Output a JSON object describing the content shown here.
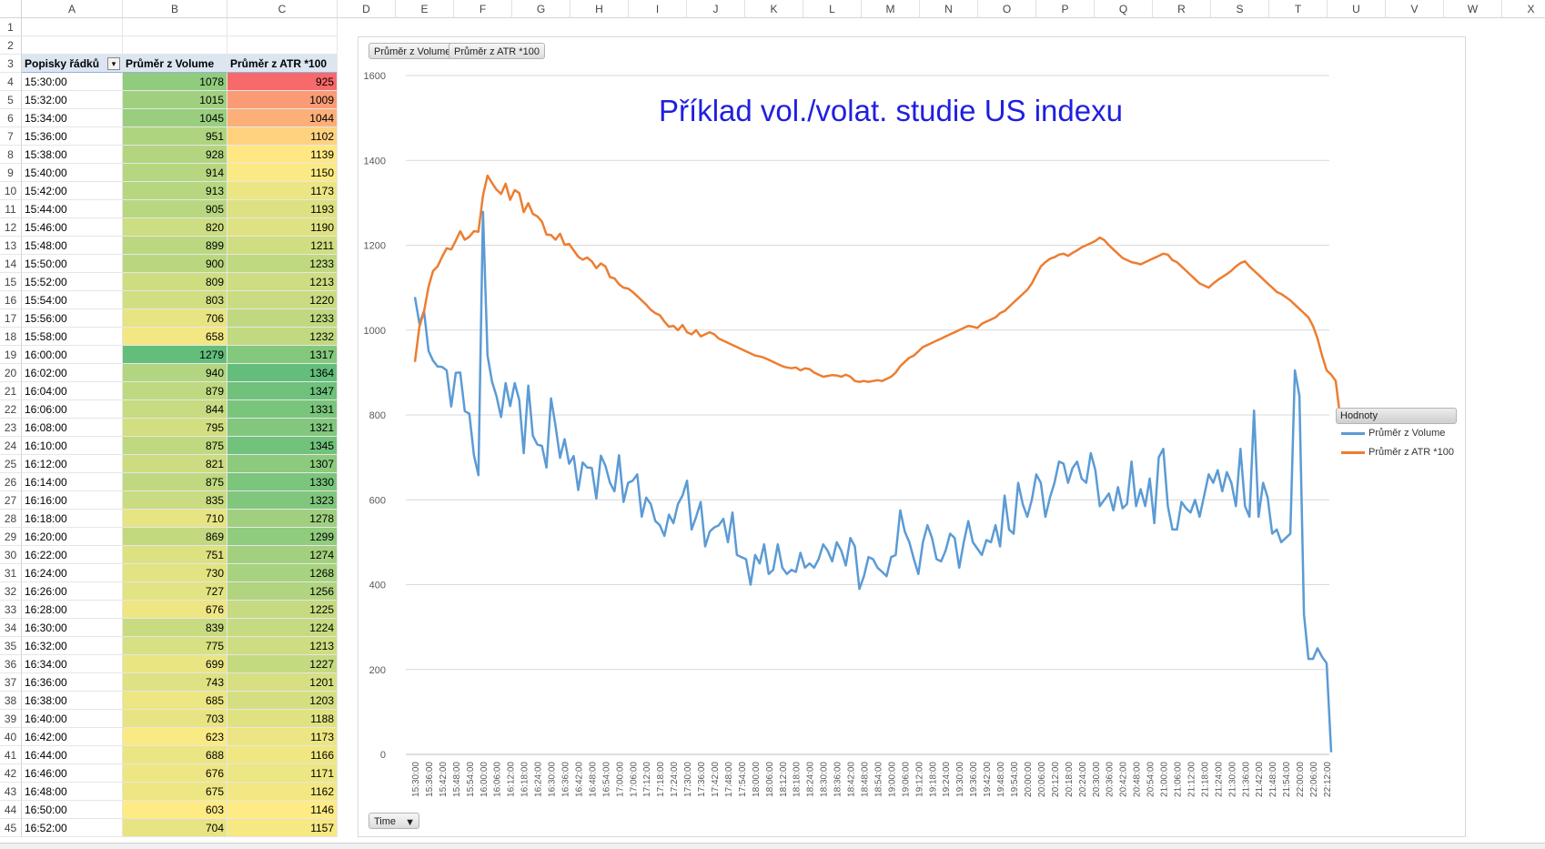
{
  "columns": [
    "A",
    "B",
    "C",
    "D",
    "E",
    "F",
    "G",
    "H",
    "I",
    "J",
    "K",
    "L",
    "M",
    "N",
    "O",
    "P",
    "Q",
    "R",
    "S",
    "T",
    "U",
    "V",
    "W",
    "X"
  ],
  "pivot": {
    "headers": [
      "Popisky řádků",
      "Průměr z Volume",
      "Průměr z ATR *100"
    ],
    "rows": [
      [
        "15:30:00",
        1078,
        925
      ],
      [
        "15:32:00",
        1015,
        1009
      ],
      [
        "15:34:00",
        1045,
        1044
      ],
      [
        "15:36:00",
        951,
        1102
      ],
      [
        "15:38:00",
        928,
        1139
      ],
      [
        "15:40:00",
        914,
        1150
      ],
      [
        "15:42:00",
        913,
        1173
      ],
      [
        "15:44:00",
        905,
        1193
      ],
      [
        "15:46:00",
        820,
        1190
      ],
      [
        "15:48:00",
        899,
        1211
      ],
      [
        "15:50:00",
        900,
        1233
      ],
      [
        "15:52:00",
        809,
        1213
      ],
      [
        "15:54:00",
        803,
        1220
      ],
      [
        "15:56:00",
        706,
        1233
      ],
      [
        "15:58:00",
        658,
        1232
      ],
      [
        "16:00:00",
        1279,
        1317
      ],
      [
        "16:02:00",
        940,
        1364
      ],
      [
        "16:04:00",
        879,
        1347
      ],
      [
        "16:06:00",
        844,
        1331
      ],
      [
        "16:08:00",
        795,
        1321
      ],
      [
        "16:10:00",
        875,
        1345
      ],
      [
        "16:12:00",
        821,
        1307
      ],
      [
        "16:14:00",
        875,
        1330
      ],
      [
        "16:16:00",
        835,
        1323
      ],
      [
        "16:18:00",
        710,
        1278
      ],
      [
        "16:20:00",
        869,
        1299
      ],
      [
        "16:22:00",
        751,
        1274
      ],
      [
        "16:24:00",
        730,
        1268
      ],
      [
        "16:26:00",
        727,
        1256
      ],
      [
        "16:28:00",
        676,
        1225
      ],
      [
        "16:30:00",
        839,
        1224
      ],
      [
        "16:32:00",
        775,
        1213
      ],
      [
        "16:34:00",
        699,
        1227
      ],
      [
        "16:36:00",
        743,
        1201
      ],
      [
        "16:38:00",
        685,
        1203
      ],
      [
        "16:40:00",
        703,
        1188
      ],
      [
        "16:42:00",
        623,
        1173
      ],
      [
        "16:44:00",
        688,
        1166
      ],
      [
        "16:46:00",
        676,
        1171
      ],
      [
        "16:48:00",
        675,
        1162
      ],
      [
        "16:50:00",
        603,
        1146
      ],
      [
        "16:52:00",
        704,
        1157
      ]
    ]
  },
  "chart_data": {
    "type": "line",
    "title": "Příklad vol./volat. studie US indexu",
    "field_buttons": [
      "Průměr z Volume",
      "Průměr z ATR *100"
    ],
    "axis_field_button": "Time",
    "legend_title": "Hodnoty",
    "ylim": [
      0,
      1600
    ],
    "yticks": [
      0,
      200,
      400,
      600,
      800,
      1000,
      1200,
      1400,
      1600
    ],
    "xtick_labels": [
      "15:30:00",
      "15:36:00",
      "15:42:00",
      "15:48:00",
      "15:54:00",
      "16:00:00",
      "16:06:00",
      "16:12:00",
      "16:18:00",
      "16:24:00",
      "16:30:00",
      "16:36:00",
      "16:42:00",
      "16:48:00",
      "16:54:00",
      "17:00:00",
      "17:06:00",
      "17:12:00",
      "17:18:00",
      "17:24:00",
      "17:30:00",
      "17:36:00",
      "17:42:00",
      "17:48:00",
      "17:54:00",
      "18:00:00",
      "18:06:00",
      "18:12:00",
      "18:18:00",
      "18:24:00",
      "18:30:00",
      "18:36:00",
      "18:42:00",
      "18:48:00",
      "18:54:00",
      "19:00:00",
      "19:06:00",
      "19:12:00",
      "19:18:00",
      "19:24:00",
      "19:30:00",
      "19:36:00",
      "19:42:00",
      "19:48:00",
      "19:54:00",
      "20:00:00",
      "20:06:00",
      "20:12:00",
      "20:18:00",
      "20:24:00",
      "20:30:00",
      "20:36:00",
      "20:42:00",
      "20:48:00",
      "20:54:00",
      "21:00:00",
      "21:06:00",
      "21:12:00",
      "21:18:00",
      "21:24:00",
      "21:30:00",
      "21:36:00",
      "21:42:00",
      "21:48:00",
      "21:54:00",
      "22:00:00",
      "22:06:00",
      "22:12:00"
    ],
    "n_points": 201,
    "series": [
      {
        "name": "Průměr z Volume",
        "color": "#5b9bd5",
        "values": [
          1078,
          1015,
          1045,
          951,
          928,
          914,
          913,
          905,
          820,
          899,
          900,
          809,
          803,
          706,
          658,
          1279,
          940,
          879,
          844,
          795,
          875,
          821,
          875,
          835,
          710,
          869,
          751,
          730,
          727,
          676,
          839,
          775,
          699,
          743,
          685,
          703,
          623,
          688,
          676,
          675,
          603,
          704,
          680,
          640,
          620,
          705,
          595,
          640,
          645,
          660,
          560,
          605,
          590,
          550,
          540,
          515,
          565,
          545,
          590,
          610,
          645,
          530,
          560,
          595,
          490,
          525,
          535,
          540,
          555,
          500,
          570,
          470,
          465,
          460,
          400,
          470,
          450,
          495,
          425,
          435,
          495,
          440,
          425,
          435,
          430,
          475,
          440,
          450,
          440,
          460,
          495,
          480,
          455,
          500,
          480,
          445,
          510,
          490,
          390,
          420,
          465,
          460,
          440,
          430,
          420,
          465,
          470,
          575,
          525,
          500,
          460,
          425,
          500,
          540,
          510,
          460,
          455,
          480,
          520,
          510,
          440,
          500,
          550,
          500,
          485,
          470,
          505,
          500,
          540,
          490,
          610,
          530,
          520,
          640,
          590,
          560,
          600,
          660,
          640,
          560,
          605,
          640,
          690,
          685,
          640,
          675,
          690,
          650,
          640,
          710,
          670,
          585,
          600,
          615,
          575,
          630,
          580,
          590,
          690,
          585,
          625,
          585,
          650,
          545,
          700,
          720,
          585,
          530,
          530,
          595,
          580,
          570,
          600,
          560,
          610,
          660,
          640,
          670,
          620,
          665,
          640,
          585,
          720,
          585,
          560,
          810,
          560,
          640,
          605,
          520,
          530,
          500,
          510,
          520,
          905,
          845,
          330,
          225,
          225,
          250,
          230,
          215,
          5
        ]
      },
      {
        "name": "Průměr z ATR *100",
        "color": "#ed7d31",
        "values": [
          925,
          1009,
          1044,
          1102,
          1139,
          1150,
          1173,
          1193,
          1190,
          1211,
          1233,
          1213,
          1220,
          1233,
          1232,
          1317,
          1364,
          1347,
          1331,
          1321,
          1345,
          1307,
          1330,
          1323,
          1278,
          1299,
          1274,
          1268,
          1256,
          1225,
          1224,
          1213,
          1227,
          1201,
          1203,
          1188,
          1173,
          1166,
          1171,
          1162,
          1146,
          1157,
          1150,
          1125,
          1122,
          1108,
          1100,
          1098,
          1090,
          1080,
          1070,
          1060,
          1048,
          1040,
          1035,
          1020,
          1008,
          1010,
          1000,
          1012,
          995,
          990,
          1000,
          985,
          990,
          995,
          990,
          980,
          975,
          970,
          965,
          960,
          955,
          950,
          945,
          940,
          938,
          935,
          930,
          925,
          920,
          915,
          912,
          910,
          912,
          905,
          910,
          908,
          900,
          895,
          890,
          892,
          894,
          893,
          890,
          895,
          890,
          880,
          878,
          880,
          878,
          880,
          882,
          880,
          885,
          890,
          900,
          915,
          925,
          935,
          940,
          950,
          960,
          965,
          970,
          975,
          980,
          985,
          990,
          995,
          1000,
          1005,
          1010,
          1008,
          1005,
          1015,
          1020,
          1025,
          1030,
          1040,
          1045,
          1055,
          1065,
          1075,
          1085,
          1095,
          1110,
          1130,
          1150,
          1160,
          1168,
          1172,
          1178,
          1180,
          1175,
          1182,
          1188,
          1195,
          1200,
          1205,
          1210,
          1218,
          1212,
          1200,
          1190,
          1180,
          1170,
          1165,
          1160,
          1158,
          1155,
          1160,
          1165,
          1170,
          1175,
          1180,
          1178,
          1165,
          1160,
          1150,
          1140,
          1130,
          1120,
          1110,
          1105,
          1100,
          1110,
          1118,
          1125,
          1132,
          1140,
          1150,
          1158,
          1162,
          1150,
          1140,
          1130,
          1120,
          1110,
          1100,
          1090,
          1085,
          1078,
          1070,
          1060,
          1050,
          1040,
          1030,
          1010,
          980,
          940,
          905,
          895,
          880,
          795
        ]
      }
    ]
  },
  "colors": {
    "volume_high": "#63be7b",
    "volume_low": "#ffeb84",
    "atr_high": "#63be7b",
    "atr_mid": "#ffeb84",
    "atr_low": "#f8696b",
    "header_bg": "#dce6f1"
  }
}
